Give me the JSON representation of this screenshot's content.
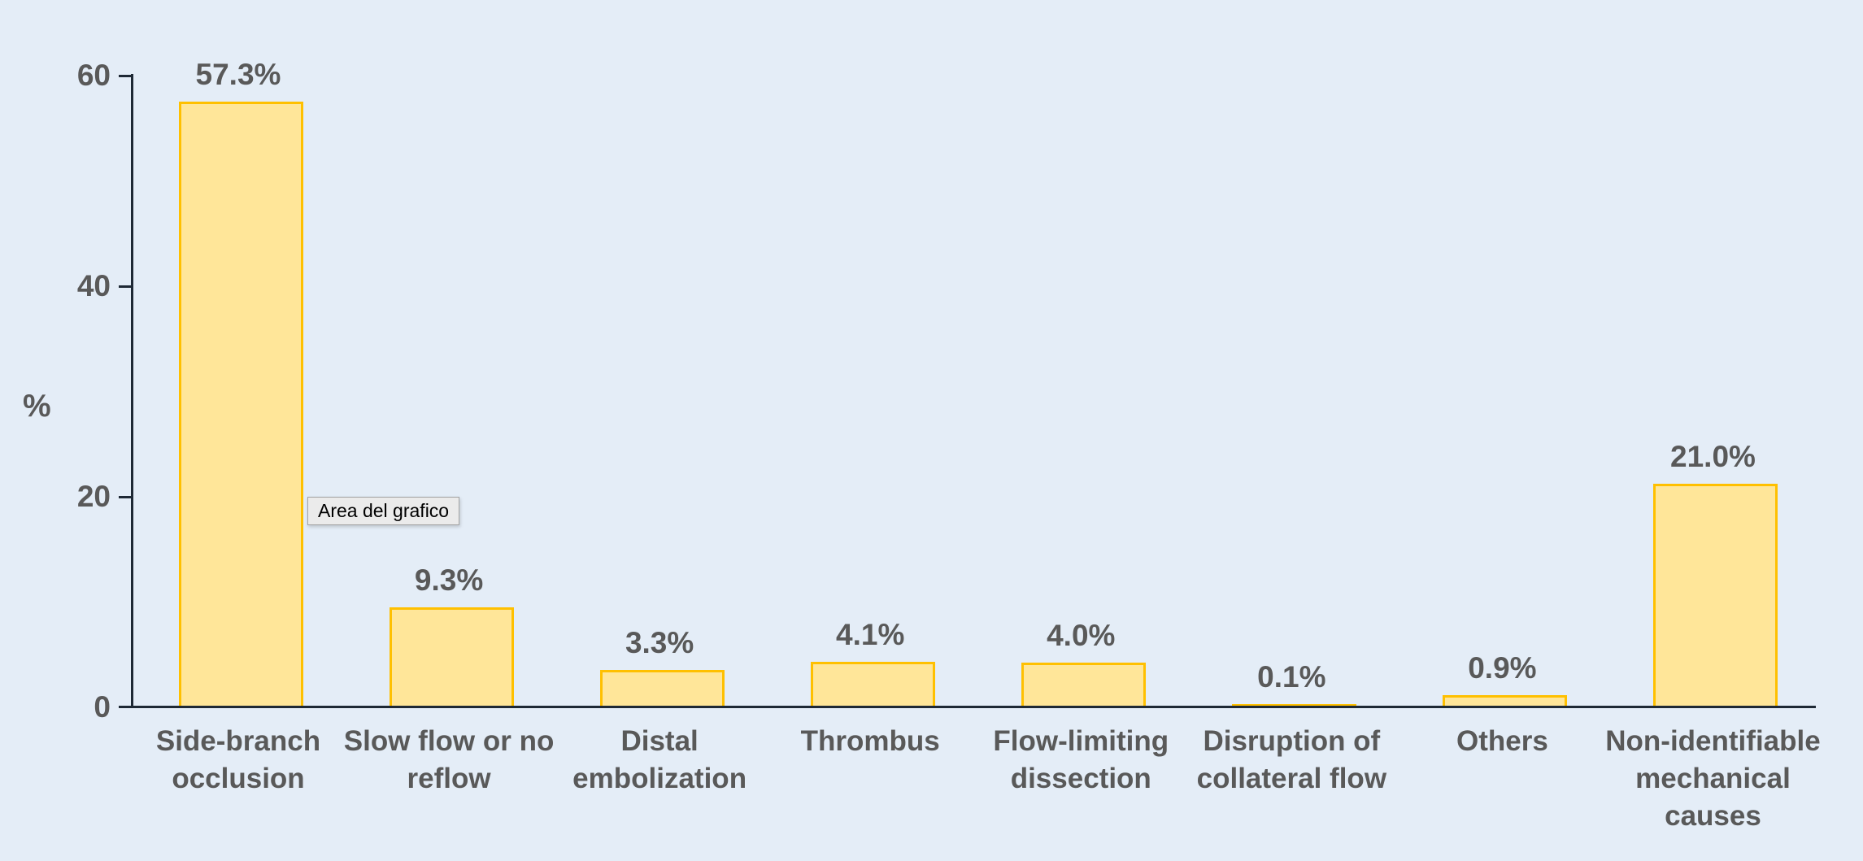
{
  "tooltip": {
    "text": "Area del grafico"
  },
  "chart_data": {
    "type": "bar",
    "title": "",
    "xlabel": "",
    "ylabel": "%",
    "categories": [
      "Side-branch\nocclusion",
      "Slow flow or no\nreflow",
      "Distal\nembolization",
      "Thrombus",
      "Flow-limiting\ndissection",
      "Disruption of\ncollateral flow",
      "Others",
      "Non-identifiable\nmechanical\ncauses"
    ],
    "values": [
      57.3,
      9.3,
      3.3,
      4.1,
      4.0,
      0.1,
      0.9,
      21.0
    ],
    "labels": [
      "57.3%",
      "9.3%",
      "3.3%",
      "4.1%",
      "4.0%",
      "0.1%",
      "0.9%",
      "21.0%"
    ],
    "y_ticks": [
      0,
      20,
      40,
      60
    ],
    "ylim": [
      0,
      60
    ],
    "grid": false,
    "legend": false,
    "colors": {
      "background": "#e4edf7",
      "bar_fill": "#ffe699",
      "bar_border": "#ffc000",
      "axis": "#1e2935",
      "text": "#595959",
      "tooltip_bg": "#ebebeb",
      "tooltip_border": "#a3a3a3"
    }
  }
}
